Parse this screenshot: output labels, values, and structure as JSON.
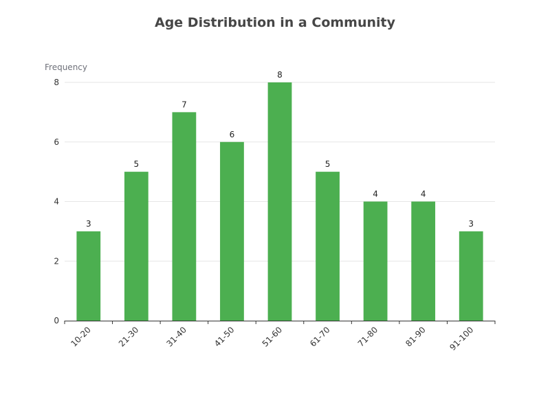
{
  "chart_data": {
    "type": "bar",
    "title": "Age Distribution in a Community",
    "ylabel": "Frequency",
    "xlabel": "",
    "categories": [
      "10-20",
      "21-30",
      "31-40",
      "41-50",
      "51-60",
      "61-70",
      "71-80",
      "81-90",
      "91-100"
    ],
    "values": [
      3,
      5,
      7,
      6,
      8,
      5,
      4,
      4,
      3
    ],
    "ylim": [
      0,
      8
    ],
    "yticks": [
      0,
      2,
      4,
      6,
      8
    ],
    "grid": true,
    "bar_color": "#4caf50",
    "show_data_labels": true
  }
}
